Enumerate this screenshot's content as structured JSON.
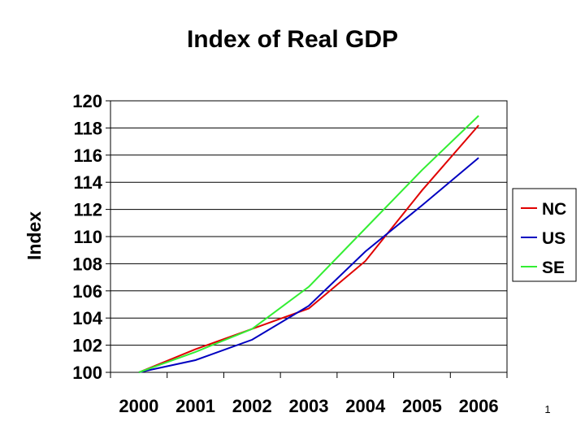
{
  "slide": {
    "number": "1"
  },
  "chart_data": {
    "type": "line",
    "title": "Index of Real GDP",
    "xlabel": "",
    "ylabel": "Index",
    "categories": [
      "2000",
      "2001",
      "2002",
      "2003",
      "2004",
      "2005",
      "2006"
    ],
    "series": [
      {
        "name": "NC",
        "color": "#e00000",
        "values": [
          100.0,
          101.7,
          103.2,
          104.7,
          108.2,
          113.4,
          118.2
        ]
      },
      {
        "name": "US",
        "color": "#0000c0",
        "values": [
          100.0,
          100.9,
          102.4,
          104.9,
          108.9,
          112.3,
          115.8
        ]
      },
      {
        "name": "SE",
        "color": "#33ee33",
        "values": [
          100.0,
          101.5,
          103.2,
          106.3,
          110.6,
          114.9,
          118.9
        ]
      }
    ],
    "ylim": [
      100,
      120
    ],
    "yticks": [
      "100",
      "102",
      "104",
      "106",
      "108",
      "110",
      "112",
      "114",
      "116",
      "118",
      "120"
    ],
    "grid": true,
    "legend": "right"
  }
}
